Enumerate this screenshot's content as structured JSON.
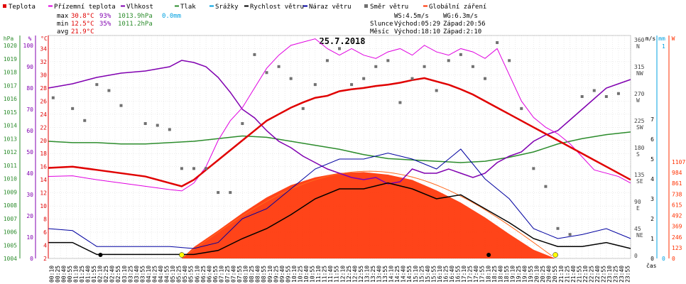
{
  "chart_data": {
    "type": "line",
    "title": "25.7.2018",
    "legend": [
      {
        "name": "Teplota",
        "color": "#e00000",
        "marker": "square"
      },
      {
        "name": "Přízemní teplota",
        "color": "#e000e0",
        "marker": "line"
      },
      {
        "name": "Vlhkost",
        "color": "#8000b0",
        "marker": "line"
      },
      {
        "name": "Tlak",
        "color": "#2c8c2c",
        "marker": "line"
      },
      {
        "name": "Srážky",
        "color": "#00a0e0",
        "marker": "line"
      },
      {
        "name": "Rychlost větru",
        "color": "#000000",
        "marker": "line"
      },
      {
        "name": "Náraz větru",
        "color": "#0000a0",
        "marker": "line"
      },
      {
        "name": "Směr větru",
        "color": "#707070",
        "marker": "dot"
      },
      {
        "name": "Globální záření",
        "color": "#ff3000",
        "marker": "line"
      }
    ],
    "stats": {
      "max": {
        "label": "max",
        "temp": "30.8°C",
        "hum": "93%",
        "press": "1013.9hPa",
        "rain": "0.0mm"
      },
      "min": {
        "label": "min",
        "temp": "12.5°C",
        "hum": "35%",
        "press": "1011.2hPa"
      },
      "avg": {
        "label": "avg",
        "temp": "21.9°C"
      }
    },
    "info": {
      "ws": "WS:4.5m/s",
      "wg": "WG:6.3m/s",
      "sun_label": "Slunce",
      "sun_rise": "Východ:05:29",
      "sun_set": "Západ:20:56",
      "moon_label": "Měsíc",
      "moon_rise": "Východ:18:10",
      "moon_set": "Západ:2:10"
    },
    "axes": {
      "hpa_title": "hPa",
      "pct_title": "%",
      "c_title": "°C",
      "ms_title": "m/s",
      "mm_title": "mm",
      "w_title": "W",
      "x_title": "čas",
      "hpa_ticks": [
        "1004",
        "1005",
        "1006",
        "1007",
        "1008",
        "1009",
        "1010",
        "1011",
        "1012",
        "1013",
        "1014",
        "1015",
        "1016",
        "1017",
        "1018",
        "1019",
        "1020"
      ],
      "pct_ticks": [
        "0",
        "10",
        "20",
        "30",
        "40",
        "50",
        "60",
        "70",
        "80",
        "90",
        "100"
      ],
      "c_ticks": [
        "2",
        "4",
        "6",
        "8",
        "10",
        "12",
        "14",
        "16",
        "18",
        "20",
        "22",
        "24",
        "26",
        "28",
        "30",
        "32",
        "34"
      ],
      "dir_ticks": [
        "0",
        "45\nNE",
        "90\nE",
        "135\nSE",
        "180\nS",
        "225\nSW",
        "270\nW",
        "315\nNW",
        "360\nN"
      ],
      "ms_ticks": [
        "0",
        "1",
        "2",
        "3",
        "4",
        "5",
        "6",
        "7"
      ],
      "mm_ticks": [
        "0",
        "1"
      ],
      "w_ticks": [
        "0",
        "123",
        "246",
        "369",
        "492",
        "615",
        "738",
        "861",
        "984",
        "1107"
      ],
      "temp_range": [
        2,
        36
      ],
      "x_ticks": [
        "00:10",
        "00:25",
        "00:40",
        "00:55",
        "01:10",
        "01:25",
        "01:40",
        "01:55",
        "02:10",
        "02:25",
        "02:40",
        "02:55",
        "03:10",
        "03:25",
        "03:40",
        "03:55",
        "04:10",
        "04:25",
        "04:40",
        "04:55",
        "05:10",
        "05:25",
        "05:40",
        "05:55",
        "06:10",
        "06:25",
        "06:40",
        "06:55",
        "07:10",
        "07:25",
        "07:40",
        "07:55",
        "08:10",
        "08:25",
        "08:40",
        "08:55",
        "09:10",
        "09:25",
        "09:40",
        "09:55",
        "10:10",
        "10:25",
        "10:40",
        "10:55",
        "11:10",
        "11:25",
        "11:40",
        "11:55",
        "12:10",
        "12:25",
        "12:40",
        "12:55",
        "13:10",
        "13:25",
        "13:40",
        "13:55",
        "14:10",
        "14:25",
        "14:40",
        "14:55",
        "15:10",
        "15:25",
        "15:40",
        "15:55",
        "16:10",
        "16:25",
        "16:40",
        "16:55",
        "17:10",
        "17:25",
        "17:40",
        "17:55",
        "18:10",
        "18:25",
        "18:40",
        "18:55",
        "19:10",
        "19:25",
        "19:40",
        "19:55",
        "20:10",
        "20:25",
        "20:40",
        "20:55",
        "21:10",
        "21:25",
        "21:40",
        "21:55",
        "22:10",
        "22:25",
        "22:40",
        "22:55",
        "23:10",
        "23:25",
        "23:40",
        "23:55"
      ]
    },
    "series": [
      {
        "name": "Teplota",
        "unit": "°C",
        "x_hours": [
          0,
          1,
          2,
          3,
          4,
          5,
          5.5,
          6,
          6.5,
          7,
          7.5,
          8,
          8.5,
          9,
          9.5,
          10,
          10.5,
          11,
          11.5,
          12,
          12.5,
          13,
          13.5,
          14,
          14.5,
          15,
          15.5,
          16,
          16.5,
          17,
          17.5,
          18,
          18.5,
          19,
          19.5,
          20,
          20.5,
          21,
          21.5,
          22,
          22.5,
          23,
          23.5,
          24
        ],
        "values": [
          15.8,
          16.0,
          15.5,
          15.0,
          14.5,
          13.5,
          13.0,
          14.0,
          15.5,
          17.0,
          18.5,
          20.0,
          21.5,
          23.0,
          24.0,
          25.0,
          25.8,
          26.5,
          26.8,
          27.5,
          27.8,
          28.0,
          28.3,
          28.5,
          28.8,
          29.2,
          29.5,
          29.0,
          28.5,
          27.8,
          27.0,
          26.0,
          25.0,
          24.0,
          23.0,
          22.0,
          21.0,
          20.0,
          19.0,
          18.0,
          17.0,
          16.0,
          15.0,
          14.0
        ]
      },
      {
        "name": "Přízemní teplota",
        "unit": "°C",
        "x_hours": [
          0,
          1,
          2,
          3,
          4,
          5,
          5.5,
          6,
          6.5,
          7,
          7.5,
          8,
          8.5,
          9,
          9.5,
          10,
          10.5,
          11,
          11.5,
          12,
          12.5,
          13,
          13.5,
          14,
          14.5,
          15,
          15.5,
          16,
          16.5,
          17,
          17.5,
          18,
          18.5,
          19,
          19.5,
          20,
          20.5,
          21,
          21.5,
          22,
          22.5,
          23,
          23.5,
          24
        ],
        "values": [
          14.5,
          14.6,
          14.0,
          13.5,
          13.0,
          12.5,
          12.3,
          13.5,
          16.0,
          20.0,
          23.0,
          25.0,
          28.0,
          31.0,
          33.0,
          34.5,
          35.0,
          35.5,
          34.0,
          33.0,
          34.0,
          33.0,
          32.5,
          33.5,
          34.0,
          33.0,
          34.5,
          33.5,
          33.0,
          34.0,
          33.5,
          32.5,
          34.0,
          30.0,
          26.0,
          23.5,
          22.0,
          21.0,
          19.5,
          17.5,
          15.5,
          15.0,
          14.5,
          13.5
        ]
      },
      {
        "name": "Vlhkost",
        "unit": "%",
        "x_hours": [
          0,
          1,
          2,
          3,
          4,
          5,
          5.5,
          6,
          6.5,
          7,
          7.5,
          8,
          8.5,
          9,
          9.5,
          10,
          10.5,
          11,
          11.5,
          12,
          12.5,
          13,
          13.5,
          14,
          14.5,
          15,
          15.5,
          16,
          16.5,
          17,
          17.5,
          18,
          18.5,
          19,
          19.5,
          20,
          20.5,
          21,
          21.5,
          22,
          22.5,
          23,
          23.5,
          24
        ],
        "values": [
          80,
          82,
          85,
          87,
          88,
          90,
          93,
          92,
          90,
          85,
          78,
          70,
          66,
          60,
          55,
          52,
          48,
          45,
          42,
          40,
          38,
          37,
          38,
          35,
          36,
          42,
          40,
          40,
          42,
          40,
          38,
          40,
          45,
          48,
          50,
          55,
          58,
          60,
          65,
          70,
          75,
          80,
          82,
          84
        ]
      },
      {
        "name": "Tlak",
        "unit": "hPa",
        "x_hours": [
          0,
          1,
          2,
          3,
          4,
          5,
          6,
          7,
          8,
          9,
          10,
          11,
          12,
          13,
          14,
          15,
          16,
          17,
          18,
          19,
          20,
          21,
          22,
          23,
          24
        ],
        "values": [
          1012.8,
          1012.7,
          1012.7,
          1012.6,
          1012.6,
          1012.7,
          1012.8,
          1013.0,
          1013.2,
          1013.1,
          1012.8,
          1012.5,
          1012.2,
          1011.8,
          1011.5,
          1011.4,
          1011.3,
          1011.2,
          1011.3,
          1011.6,
          1012.0,
          1012.6,
          1013.0,
          1013.3,
          1013.5
        ]
      },
      {
        "name": "Rychlost větru",
        "unit": "m/s",
        "x_hours": [
          0,
          1,
          2,
          3,
          4,
          5,
          6,
          7,
          8,
          9,
          10,
          11,
          12,
          13,
          14,
          15,
          16,
          17,
          18,
          19,
          20,
          21,
          22,
          23,
          24
        ],
        "values": [
          0.8,
          0.8,
          0.2,
          0.2,
          0.2,
          0.2,
          0.2,
          0.4,
          1.0,
          1.5,
          2.2,
          3.0,
          3.5,
          3.5,
          3.8,
          3.5,
          3.0,
          3.2,
          2.5,
          1.8,
          1.0,
          0.6,
          0.6,
          0.8,
          0.5
        ]
      },
      {
        "name": "Náraz větru",
        "unit": "m/s",
        "x_hours": [
          0,
          1,
          2,
          3,
          4,
          5,
          6,
          7,
          8,
          9,
          10,
          11,
          12,
          13,
          14,
          15,
          16,
          17,
          18,
          19,
          20,
          21,
          22,
          23,
          24
        ],
        "values": [
          1.5,
          1.4,
          0.6,
          0.6,
          0.6,
          0.6,
          0.5,
          0.8,
          2.0,
          2.5,
          3.5,
          4.5,
          5.0,
          5.0,
          5.3,
          5.0,
          4.5,
          5.5,
          4.0,
          3.0,
          1.5,
          1.0,
          1.2,
          1.5,
          1.0
        ]
      },
      {
        "name": "Směr větru",
        "unit": "°",
        "x_hours": [
          0.2,
          1,
          1.5,
          2,
          2.5,
          3,
          4,
          4.5,
          5,
          5.5,
          6,
          6.5,
          7,
          7.5,
          8,
          8.5,
          9,
          9.5,
          10,
          10.5,
          11,
          11.5,
          12,
          12.5,
          13,
          13.5,
          14,
          14.5,
          15,
          15.5,
          16,
          16.5,
          17,
          17.5,
          18,
          18.5,
          19,
          19.5,
          20,
          20.5,
          21,
          21.5,
          22,
          22.5,
          23,
          23.5
        ],
        "values": [
          268,
          250,
          230,
          290,
          280,
          255,
          225,
          222,
          215,
          150,
          150,
          150,
          110,
          110,
          225,
          340,
          310,
          320,
          300,
          250,
          290,
          330,
          350,
          290,
          300,
          320,
          330,
          260,
          300,
          320,
          280,
          330,
          340,
          320,
          300,
          360,
          330,
          250,
          150,
          120,
          50,
          40,
          270,
          280,
          270,
          275
        ]
      },
      {
        "name": "Globální záření",
        "unit": "W",
        "x_hours": [
          5.5,
          6,
          7,
          8,
          9,
          10,
          11,
          12,
          13,
          14,
          15,
          16,
          17,
          18,
          19,
          20,
          20.9
        ],
        "values": [
          0,
          130,
          320,
          520,
          700,
          840,
          930,
          980,
          990,
          960,
          900,
          780,
          640,
          470,
          280,
          100,
          0
        ]
      }
    ]
  }
}
